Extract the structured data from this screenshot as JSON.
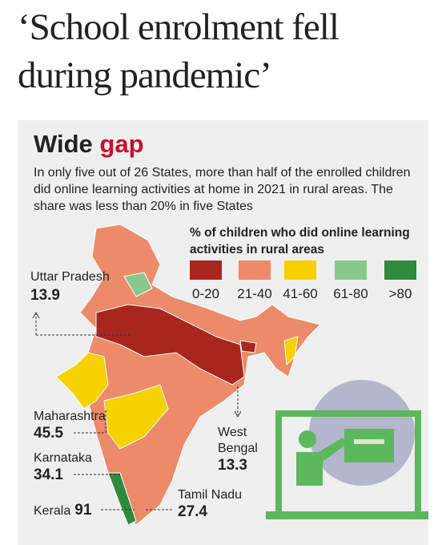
{
  "headline": "‘School enrolment fell during pandemic’",
  "title": {
    "first": "Wide",
    "second": "gap"
  },
  "description": "In only five out of 26 States, more than half of the enrolled children did online learning activities at home in 2021 in rural areas. The share was less than 20% in five States",
  "legend": {
    "title": "% of children who did online learning activities in rural areas",
    "items": [
      {
        "label": "0-20",
        "color": "#a8261e"
      },
      {
        "label": "21-40",
        "color": "#ec8a6a"
      },
      {
        "label": "41-60",
        "color": "#f7d100"
      },
      {
        "label": "61-80",
        "color": "#86c98a"
      },
      {
        "label": ">80",
        "color": "#2e8b3e"
      }
    ]
  },
  "callouts": [
    {
      "name": "Uttar Pradesh",
      "value": 13.9
    },
    {
      "name": "Maharashtra",
      "value": 45.5
    },
    {
      "name": "Karnataka",
      "value": 34.1
    },
    {
      "name": "Kerala",
      "value": 91
    },
    {
      "name": "West Bengal",
      "value": 13.3
    },
    {
      "name": "Tamil Nadu",
      "value": 27.4
    }
  ]
}
